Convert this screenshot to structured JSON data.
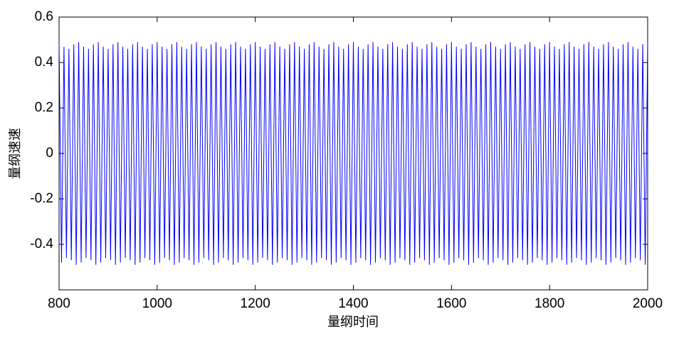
{
  "chart_data": {
    "type": "line",
    "xlabel": "量纲时间",
    "ylabel": "量纲速速",
    "color": "#0000ff",
    "xlim": [
      800,
      2000
    ],
    "xticks": [
      800,
      1000,
      1200,
      1400,
      1600,
      1800,
      2000
    ],
    "ylim": [
      -0.6,
      0.6
    ],
    "yticks": [
      -0.4,
      -0.2,
      0,
      0.2,
      0.4,
      0.6
    ],
    "grid": false,
    "x": [
      800,
      805,
      810,
      815,
      820,
      825,
      830,
      835,
      840,
      845,
      850,
      855,
      860,
      865,
      870,
      875,
      880,
      885,
      890,
      895,
      900,
      905,
      910,
      915,
      920,
      925,
      930,
      935,
      940,
      945,
      950,
      955,
      960,
      965,
      970,
      975,
      980,
      985,
      990,
      995,
      1000,
      1005,
      1010,
      1015,
      1020,
      1025,
      1030,
      1035,
      1040,
      1045,
      1050,
      1055,
      1060,
      1065,
      1070,
      1075,
      1080,
      1085,
      1090,
      1095,
      1100,
      1105,
      1110,
      1115,
      1120,
      1125,
      1130,
      1135,
      1140,
      1145,
      1150,
      1155,
      1160,
      1165,
      1170,
      1175,
      1180,
      1185,
      1190,
      1195,
      1200,
      1205,
      1210,
      1215,
      1220,
      1225,
      1230,
      1235,
      1240,
      1245,
      1250,
      1255,
      1260,
      1265,
      1270,
      1275,
      1280,
      1285,
      1290,
      1295,
      1300,
      1305,
      1310,
      1315,
      1320,
      1325,
      1330,
      1335,
      1340,
      1345,
      1350,
      1355,
      1360,
      1365,
      1370,
      1375,
      1380,
      1385,
      1390,
      1395,
      1400,
      1405,
      1410,
      1415,
      1420,
      1425,
      1430,
      1435,
      1440,
      1445,
      1450,
      1455,
      1460,
      1465,
      1470,
      1475,
      1480,
      1485,
      1490,
      1495,
      1500,
      1505,
      1510,
      1515,
      1520,
      1525,
      1530,
      1535,
      1540,
      1545,
      1550,
      1555,
      1560,
      1565,
      1570,
      1575,
      1580,
      1585,
      1590,
      1595,
      1600,
      1605,
      1610,
      1615,
      1620,
      1625,
      1630,
      1635,
      1640,
      1645,
      1650,
      1655,
      1660,
      1665,
      1670,
      1675,
      1680,
      1685,
      1690,
      1695,
      1700,
      1705,
      1710,
      1715,
      1720,
      1725,
      1730,
      1735,
      1740,
      1745,
      1750,
      1755,
      1760,
      1765,
      1770,
      1775,
      1780,
      1785,
      1790,
      1795,
      1800,
      1805,
      1810,
      1815,
      1820,
      1825,
      1830,
      1835,
      1840,
      1845,
      1850,
      1855,
      1860,
      1865,
      1870,
      1875,
      1880,
      1885,
      1890,
      1895,
      1900,
      1905,
      1910,
      1915,
      1920,
      1925,
      1930,
      1935,
      1940,
      1945,
      1950,
      1955,
      1960,
      1965,
      1970,
      1975,
      1980,
      1985,
      1990,
      1995,
      2000
    ],
    "values": [
      0.49,
      -0.48,
      0.47,
      -0.46,
      0.46,
      -0.47,
      0.48,
      -0.49,
      0.49,
      -0.48,
      0.47,
      -0.46,
      0.46,
      -0.47,
      0.48,
      -0.49,
      0.49,
      -0.48,
      0.47,
      -0.46,
      0.46,
      -0.47,
      0.48,
      -0.49,
      0.49,
      -0.48,
      0.47,
      -0.46,
      0.46,
      -0.47,
      0.48,
      -0.49,
      0.49,
      -0.48,
      0.47,
      -0.46,
      0.46,
      -0.47,
      0.48,
      -0.49,
      0.49,
      -0.48,
      0.47,
      -0.46,
      0.46,
      -0.47,
      0.48,
      -0.49,
      0.49,
      -0.48,
      0.47,
      -0.46,
      0.46,
      -0.47,
      0.48,
      -0.49,
      0.49,
      -0.48,
      0.47,
      -0.46,
      0.46,
      -0.47,
      0.48,
      -0.49,
      0.49,
      -0.48,
      0.47,
      -0.46,
      0.46,
      -0.47,
      0.48,
      -0.49,
      0.49,
      -0.48,
      0.47,
      -0.46,
      0.46,
      -0.47,
      0.48,
      -0.49,
      0.49,
      -0.48,
      0.47,
      -0.46,
      0.46,
      -0.47,
      0.48,
      -0.49,
      0.49,
      -0.48,
      0.47,
      -0.46,
      0.46,
      -0.47,
      0.48,
      -0.49,
      0.49,
      -0.48,
      0.47,
      -0.46,
      0.46,
      -0.47,
      0.48,
      -0.49,
      0.49,
      -0.48,
      0.47,
      -0.46,
      0.46,
      -0.47,
      0.48,
      -0.49,
      0.49,
      -0.48,
      0.47,
      -0.46,
      0.46,
      -0.47,
      0.48,
      -0.49,
      0.49,
      -0.48,
      0.47,
      -0.46,
      0.46,
      -0.47,
      0.48,
      -0.49,
      0.49,
      -0.48,
      0.47,
      -0.46,
      0.46,
      -0.47,
      0.48,
      -0.49,
      0.49,
      -0.48,
      0.47,
      -0.46,
      0.46,
      -0.47,
      0.48,
      -0.49,
      0.49,
      -0.48,
      0.47,
      -0.46,
      0.46,
      -0.47,
      0.48,
      -0.49,
      0.49,
      -0.48,
      0.47,
      -0.46,
      0.46,
      -0.47,
      0.48,
      -0.49,
      0.49,
      -0.48,
      0.47,
      -0.46,
      0.46,
      -0.47,
      0.48,
      -0.49,
      0.49,
      -0.48,
      0.47,
      -0.46,
      0.46,
      -0.47,
      0.48,
      -0.49,
      0.49,
      -0.48,
      0.47,
      -0.46,
      0.46,
      -0.47,
      0.48,
      -0.49,
      0.49,
      -0.48,
      0.47,
      -0.46,
      0.46,
      -0.47,
      0.48,
      -0.49,
      0.49,
      -0.48,
      0.47,
      -0.46,
      0.46,
      -0.47,
      0.48,
      -0.49,
      0.49,
      -0.48,
      0.47,
      -0.46,
      0.46,
      -0.47,
      0.48,
      -0.49,
      0.49,
      -0.48,
      0.47,
      -0.46,
      0.46,
      -0.47,
      0.48,
      -0.49,
      0.49,
      -0.48,
      0.47,
      -0.46,
      0.46,
      -0.47,
      0.48,
      -0.49,
      0.49,
      -0.48,
      0.47,
      -0.46,
      0.46,
      -0.47,
      0.48,
      -0.49,
      0.49,
      -0.48,
      0.47,
      -0.46,
      0.46,
      -0.47,
      0.48,
      -0.49,
      0.49
    ]
  }
}
